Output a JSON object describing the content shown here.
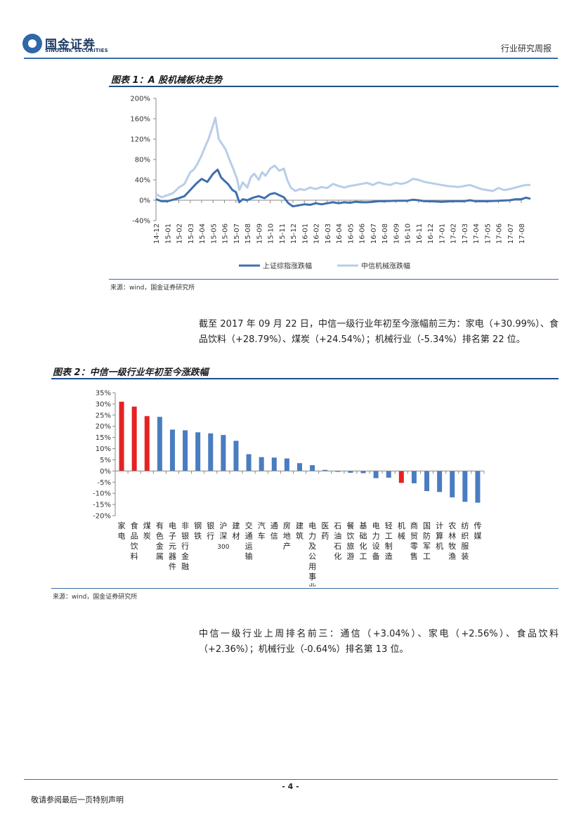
{
  "header": {
    "company_cn": "国金证券",
    "company_en": "SINOLINK SECURITIES",
    "report_type": "行业研究周报"
  },
  "figure1": {
    "title": "图表 1：A 股机械板块走势",
    "source": "来源：wind，国金证券研究所"
  },
  "figure2": {
    "title": "图表 2：中信一级行业年初至今涨跌幅",
    "source": "来源：wind，国金证券研究所"
  },
  "paragraph1": "截至 2017 年 09 月 22 日，中信一级行业年初至今涨幅前三为：家电（+30.99%）、食品饮料（+28.79%）、煤炭（+24.54%）；机械行业（-5.34%）排名第 22 位。",
  "paragraph2": "中信一级行业上周排名前三：通信（+3.04%）、家电（+2.56%）、食品饮料（+2.36%）；机械行业（-0.64%）排名第 13 位。",
  "footer": {
    "page_number": "- 4 -",
    "disclaimer": "敬请参阅最后一页特别声明"
  },
  "colors": {
    "blue_series": "#3f6fae",
    "light_series": "#b8cde8",
    "bar_default": "#4a7cc0",
    "bar_highlight": "#e52222"
  },
  "chart_data": [
    {
      "type": "line",
      "title": "图表 1：A 股机械板块走势",
      "x": [
        "14-12",
        "15-01",
        "15-02",
        "15-03",
        "15-04",
        "15-05",
        "15-06",
        "15-07",
        "15-08",
        "15-09",
        "15-10",
        "15-11",
        "15-12",
        "16-01",
        "16-02",
        "16-03",
        "16-04",
        "16-05",
        "16-06",
        "16-07",
        "16-08",
        "16-09",
        "16-10",
        "16-11",
        "16-12",
        "17-01",
        "17-02",
        "17-03",
        "17-04",
        "17-05",
        "17-06",
        "17-07",
        "17-08"
      ],
      "y_ticks": [
        "200%",
        "160%",
        "120%",
        "80%",
        "40%",
        "0%",
        "-40%"
      ],
      "ylim": [
        -40,
        200
      ],
      "series": [
        {
          "name": "上证综指涨跌幅",
          "values": [
            [
              0,
              2
            ],
            [
              0.5,
              -2
            ],
            [
              1,
              -2
            ],
            [
              1.5,
              1
            ],
            [
              2,
              4
            ],
            [
              2.5,
              8
            ],
            [
              3,
              20
            ],
            [
              3.5,
              32
            ],
            [
              4,
              42
            ],
            [
              4.5,
              36
            ],
            [
              5,
              52
            ],
            [
              5.4,
              60
            ],
            [
              5.7,
              45
            ],
            [
              6,
              38
            ],
            [
              6.3,
              32
            ],
            [
              6.7,
              20
            ],
            [
              7,
              16
            ],
            [
              7.3,
              -4
            ],
            [
              7.6,
              2
            ],
            [
              8,
              0
            ],
            [
              8.5,
              5
            ],
            [
              9,
              8
            ],
            [
              9.5,
              4
            ],
            [
              10,
              12
            ],
            [
              10.4,
              14
            ],
            [
              10.8,
              10
            ],
            [
              11.2,
              6
            ],
            [
              11.6,
              -6
            ],
            [
              12,
              -12
            ],
            [
              12.5,
              -10
            ],
            [
              13,
              -8
            ],
            [
              13.5,
              -9
            ],
            [
              14,
              -6
            ],
            [
              14.5,
              -8
            ],
            [
              15,
              -6
            ],
            [
              15.5,
              -4
            ],
            [
              16,
              -6
            ],
            [
              16.5,
              -4
            ],
            [
              17,
              -5
            ],
            [
              17.5,
              -3
            ],
            [
              18,
              -4
            ],
            [
              18.5,
              -4
            ],
            [
              19,
              -3
            ],
            [
              19.5,
              -2
            ],
            [
              20,
              -2
            ],
            [
              21,
              -1
            ],
            [
              22,
              -1
            ],
            [
              22.5,
              1
            ],
            [
              23,
              0
            ],
            [
              23.5,
              -2
            ],
            [
              24,
              -2
            ],
            [
              25,
              -3
            ],
            [
              26,
              -2
            ],
            [
              27,
              -2
            ],
            [
              27.5,
              0
            ],
            [
              28,
              -2
            ],
            [
              29,
              -2
            ],
            [
              30,
              -1
            ],
            [
              31,
              0
            ],
            [
              31.5,
              2
            ],
            [
              32,
              2
            ],
            [
              32.4,
              5
            ],
            [
              32.8,
              3
            ]
          ]
        },
        {
          "name": "中信机械涨跌幅",
          "values": [
            [
              0,
              12
            ],
            [
              0.5,
              6
            ],
            [
              1,
              10
            ],
            [
              1.5,
              14
            ],
            [
              2,
              25
            ],
            [
              2.5,
              32
            ],
            [
              3,
              55
            ],
            [
              3.3,
              60
            ],
            [
              3.6,
              70
            ],
            [
              4,
              88
            ],
            [
              4.3,
              105
            ],
            [
              4.6,
              120
            ],
            [
              4.9,
              140
            ],
            [
              5.2,
              162
            ],
            [
              5.5,
              120
            ],
            [
              5.8,
              110
            ],
            [
              6.1,
              100
            ],
            [
              6.4,
              82
            ],
            [
              6.8,
              60
            ],
            [
              7.1,
              42
            ],
            [
              7.3,
              20
            ],
            [
              7.6,
              35
            ],
            [
              8,
              25
            ],
            [
              8.3,
              45
            ],
            [
              8.6,
              52
            ],
            [
              9,
              40
            ],
            [
              9.3,
              55
            ],
            [
              9.6,
              48
            ],
            [
              10,
              62
            ],
            [
              10.4,
              68
            ],
            [
              10.8,
              58
            ],
            [
              11.2,
              62
            ],
            [
              11.5,
              40
            ],
            [
              11.8,
              25
            ],
            [
              12.2,
              18
            ],
            [
              12.6,
              22
            ],
            [
              13,
              20
            ],
            [
              13.5,
              25
            ],
            [
              14,
              22
            ],
            [
              14.5,
              26
            ],
            [
              15,
              24
            ],
            [
              15.5,
              32
            ],
            [
              16,
              28
            ],
            [
              16.5,
              25
            ],
            [
              17,
              28
            ],
            [
              17.5,
              30
            ],
            [
              18,
              32
            ],
            [
              18.5,
              34
            ],
            [
              19,
              30
            ],
            [
              19.5,
              35
            ],
            [
              20,
              32
            ],
            [
              20.5,
              30
            ],
            [
              21,
              34
            ],
            [
              21.5,
              32
            ],
            [
              22,
              35
            ],
            [
              22.5,
              42
            ],
            [
              23,
              40
            ],
            [
              23.5,
              36
            ],
            [
              24,
              34
            ],
            [
              24.5,
              32
            ],
            [
              25,
              30
            ],
            [
              25.5,
              28
            ],
            [
              26,
              27
            ],
            [
              26.5,
              26
            ],
            [
              27,
              28
            ],
            [
              27.5,
              30
            ],
            [
              28,
              26
            ],
            [
              28.5,
              22
            ],
            [
              29,
              20
            ],
            [
              29.5,
              18
            ],
            [
              30,
              24
            ],
            [
              30.5,
              20
            ],
            [
              31,
              22
            ],
            [
              31.5,
              25
            ],
            [
              32,
              28
            ],
            [
              32.4,
              30
            ],
            [
              32.8,
              30
            ]
          ]
        }
      ]
    },
    {
      "type": "bar",
      "title": "图表 2：中信一级行业年初至今涨跌幅",
      "categories": [
        "家电",
        "食品饮料",
        "煤炭",
        "有色金属",
        "电子元器件",
        "非银行金融",
        "钢铁",
        "银行",
        "沪深300",
        "建材",
        "交通运输",
        "汽车",
        "通信",
        "房地产",
        "建筑",
        "电力及公用事业",
        "医药",
        "石油石化",
        "餐饮旅游",
        "基础化工",
        "电力设备",
        "轻工制造",
        "机械",
        "商贸零售",
        "国防军工",
        "计算机",
        "农林牧渔",
        "纺织服装",
        "传媒"
      ],
      "values": [
        30.99,
        28.79,
        24.54,
        24.2,
        18.5,
        18.2,
        17.3,
        16.8,
        16.1,
        13.5,
        7.5,
        6.2,
        6.0,
        5.6,
        3.5,
        2.6,
        0.5,
        -0.4,
        -0.8,
        -1.0,
        -3.2,
        -3.0,
        -5.34,
        -5.5,
        -9.0,
        -9.4,
        -11.8,
        -13.8,
        -14.2
      ],
      "highlight": [
        "家电",
        "食品饮料",
        "煤炭",
        "机械"
      ],
      "y_ticks": [
        "35%",
        "30%",
        "25%",
        "20%",
        "15%",
        "10%",
        "5%",
        "0%",
        "-5%",
        "-10%",
        "-15%",
        "-20%"
      ],
      "ylim": [
        -20,
        35
      ]
    }
  ]
}
